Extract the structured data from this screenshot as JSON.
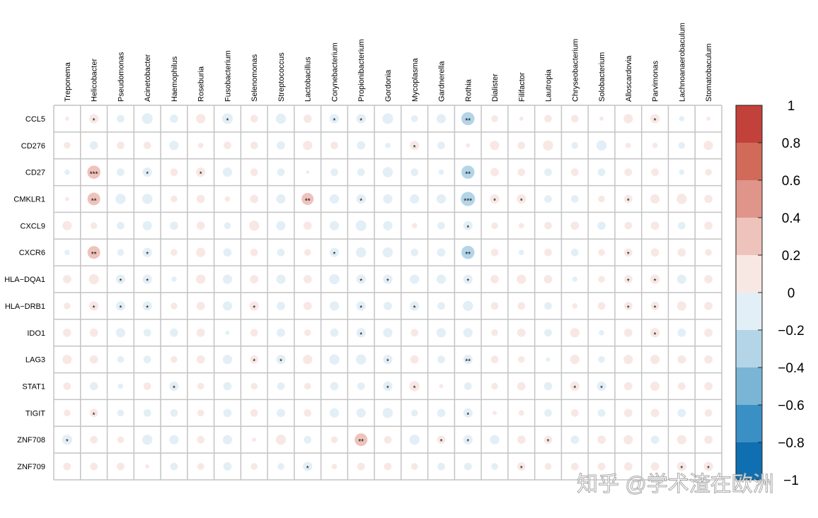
{
  "chart_data": {
    "type": "corrplot",
    "columns": [
      "Treponema",
      "Helicobacter",
      "Pseudomonas",
      "Acinetobacter",
      "Haemophilus",
      "Roseburia",
      "Fusobacterium",
      "Selenomonas",
      "Streptococcus",
      "Lactobacillus",
      "Corynebacterium",
      "Propionibacterium",
      "Gordonia",
      "Mycoplasma",
      "Gardnerella",
      "Rothia",
      "Dialister",
      "Filifactor",
      "Lautropia",
      "Chryseobacterium",
      "Solobacterium",
      "Alloscardovia",
      "Parvimonas",
      "Lachnoanaerobaculum",
      "Stomatobaculum"
    ],
    "rows": [
      "CCL5",
      "CD276",
      "CD27",
      "CMKLR1",
      "CXCL9",
      "CXCR6",
      "HLA−DQA1",
      "HLA−DRB1",
      "IDO1",
      "LAG3",
      "STAT1",
      "TIGIT",
      "ZNF708",
      "ZNF709"
    ],
    "values": [
      [
        0.03,
        0.15,
        -0.1,
        -0.2,
        -0.12,
        0.15,
        -0.2,
        0.1,
        -0.18,
        0.12,
        -0.15,
        -0.15,
        -0.2,
        -0.08,
        -0.15,
        -0.3,
        0.08,
        0.03,
        0.1,
        0.1,
        0.03,
        0.15,
        0.15,
        -0.05,
        0.03
      ],
      [
        0.08,
        -0.12,
        0.1,
        0.1,
        -0.15,
        0.05,
        0.1,
        0.1,
        -0.12,
        0.15,
        0.1,
        -0.12,
        -0.05,
        0.15,
        -0.1,
        0.03,
        0.15,
        0.1,
        0.18,
        -0.08,
        -0.18,
        0.05,
        0.05,
        -0.08,
        0.15
      ],
      [
        -0.05,
        0.3,
        -0.1,
        -0.15,
        0.1,
        0.15,
        -0.15,
        0.1,
        -0.1,
        0.02,
        -0.1,
        -0.1,
        -0.18,
        -0.1,
        -0.05,
        -0.3,
        0.12,
        0.1,
        -0.1,
        0.1,
        -0.1,
        0.1,
        0.1,
        -0.05,
        0.08
      ],
      [
        0.03,
        0.28,
        -0.18,
        -0.18,
        0.08,
        0.12,
        0.05,
        0.12,
        -0.15,
        0.25,
        -0.15,
        -0.15,
        -0.15,
        -0.15,
        -0.15,
        -0.35,
        0.15,
        0.15,
        -0.1,
        -0.1,
        0.08,
        0.12,
        0.15,
        0.18,
        0.12
      ],
      [
        0.15,
        0.08,
        -0.1,
        -0.15,
        -0.12,
        0.12,
        -0.08,
        0.18,
        -0.15,
        0.12,
        -0.15,
        -0.2,
        -0.15,
        0.05,
        -0.1,
        -0.15,
        0.08,
        0.05,
        0.1,
        0.12,
        -0.12,
        0.1,
        0.12,
        -0.1,
        0.12
      ],
      [
        -0.05,
        0.28,
        -0.08,
        -0.15,
        0.08,
        0.15,
        -0.12,
        0.1,
        -0.1,
        0.08,
        -0.15,
        -0.18,
        -0.18,
        -0.1,
        -0.12,
        -0.3,
        0.1,
        -0.05,
        0.1,
        -0.1,
        0.08,
        0.12,
        0.12,
        0.12,
        0.08
      ],
      [
        0.12,
        0.18,
        -0.15,
        -0.15,
        -0.05,
        0.15,
        -0.15,
        0.12,
        -0.15,
        0.12,
        -0.18,
        -0.15,
        -0.15,
        -0.15,
        -0.15,
        -0.15,
        0.12,
        0.15,
        0.12,
        -0.05,
        0.08,
        0.12,
        0.15,
        -0.15,
        0.12
      ],
      [
        0.08,
        0.15,
        -0.15,
        -0.15,
        0.08,
        0.12,
        -0.15,
        0.15,
        -0.12,
        0.12,
        -0.15,
        -0.15,
        -0.12,
        -0.15,
        -0.1,
        -0.18,
        0.1,
        0.1,
        -0.1,
        0.05,
        0.1,
        0.12,
        0.12,
        0.15,
        0.12
      ],
      [
        0.12,
        0.12,
        -0.15,
        -0.1,
        -0.12,
        0.12,
        -0.03,
        0.1,
        -0.12,
        0.08,
        -0.12,
        -0.15,
        -0.15,
        0.1,
        -0.15,
        -0.15,
        0.08,
        0.12,
        -0.1,
        0.15,
        -0.05,
        0.12,
        0.15,
        -0.12,
        0.12
      ],
      [
        0.15,
        0.12,
        -0.08,
        -0.1,
        0.08,
        0.12,
        -0.15,
        0.12,
        -0.15,
        0.15,
        -0.18,
        -0.18,
        -0.15,
        0.12,
        -0.1,
        -0.15,
        0.1,
        0.08,
        -0.03,
        0.15,
        -0.08,
        0.15,
        0.15,
        0.12,
        0.12
      ],
      [
        0.1,
        -0.12,
        -0.05,
        0.1,
        -0.15,
        0.08,
        -0.12,
        0.08,
        -0.1,
        0.08,
        -0.12,
        -0.1,
        -0.15,
        0.18,
        0.03,
        -0.1,
        0.08,
        0.12,
        -0.12,
        0.15,
        -0.15,
        0.12,
        0.15,
        0.1,
        0.12
      ],
      [
        0.08,
        0.12,
        -0.08,
        -0.1,
        -0.1,
        0.08,
        -0.12,
        0.1,
        -0.12,
        0.1,
        -0.15,
        -0.15,
        -0.18,
        -0.08,
        -0.12,
        -0.15,
        0.03,
        0.05,
        -0.1,
        0.1,
        -0.1,
        0.12,
        0.12,
        -0.12,
        0.1
      ],
      [
        -0.18,
        0.1,
        0.08,
        -0.18,
        -0.15,
        0.1,
        -0.15,
        0.03,
        0.18,
        -0.1,
        0.08,
        0.28,
        0.1,
        -0.18,
        0.12,
        -0.15,
        -0.15,
        0.12,
        0.12,
        -0.12,
        0.12,
        0.15,
        -0.12,
        0.15,
        0.12
      ],
      [
        0.1,
        0.1,
        0.1,
        0.03,
        -0.1,
        0.08,
        -0.12,
        0.08,
        -0.08,
        -0.15,
        0.05,
        0.1,
        0.1,
        0.08,
        -0.1,
        -0.1,
        -0.08,
        0.12,
        0.08,
        0.1,
        0.1,
        0.12,
        0.12,
        0.15,
        0.15
      ]
    ],
    "significance": [
      [
        null,
        "*",
        null,
        null,
        null,
        null,
        "*",
        null,
        null,
        null,
        "*",
        "*",
        null,
        null,
        null,
        "**",
        null,
        null,
        null,
        null,
        null,
        null,
        "*",
        null,
        null
      ],
      [
        null,
        null,
        null,
        null,
        null,
        null,
        null,
        null,
        null,
        null,
        null,
        null,
        null,
        "*",
        null,
        null,
        null,
        null,
        null,
        null,
        null,
        null,
        null,
        null,
        null
      ],
      [
        null,
        "***",
        null,
        "*",
        null,
        "*",
        null,
        null,
        null,
        null,
        null,
        null,
        null,
        null,
        null,
        "**",
        null,
        null,
        null,
        null,
        null,
        null,
        null,
        null,
        null
      ],
      [
        null,
        "**",
        null,
        null,
        null,
        null,
        null,
        null,
        null,
        "**",
        null,
        "*",
        null,
        null,
        null,
        "***",
        "*",
        "*",
        null,
        null,
        null,
        "*",
        null,
        null,
        null
      ],
      [
        null,
        null,
        null,
        null,
        null,
        null,
        null,
        null,
        null,
        null,
        null,
        null,
        null,
        null,
        null,
        "*",
        null,
        null,
        null,
        null,
        null,
        null,
        null,
        null,
        null
      ],
      [
        null,
        "**",
        null,
        "*",
        null,
        null,
        null,
        null,
        null,
        null,
        "*",
        null,
        null,
        null,
        null,
        "**",
        null,
        null,
        null,
        null,
        null,
        "*",
        null,
        null,
        null
      ],
      [
        null,
        null,
        "*",
        "*",
        null,
        null,
        null,
        null,
        null,
        null,
        null,
        "*",
        "*",
        null,
        null,
        "*",
        null,
        null,
        null,
        null,
        null,
        "*",
        "*",
        null,
        null
      ],
      [
        null,
        "*",
        "*",
        "*",
        null,
        null,
        null,
        "*",
        null,
        null,
        null,
        "*",
        null,
        "*",
        null,
        null,
        null,
        null,
        null,
        null,
        null,
        "*",
        "*",
        null,
        null
      ],
      [
        null,
        null,
        null,
        null,
        null,
        null,
        null,
        null,
        null,
        null,
        null,
        "*",
        null,
        null,
        null,
        null,
        null,
        null,
        null,
        null,
        null,
        null,
        "*",
        null,
        null
      ],
      [
        null,
        null,
        null,
        null,
        null,
        null,
        null,
        "*",
        "*",
        null,
        null,
        null,
        "*",
        null,
        null,
        "**",
        null,
        null,
        null,
        null,
        null,
        null,
        null,
        null,
        null
      ],
      [
        null,
        null,
        null,
        null,
        "*",
        null,
        null,
        null,
        null,
        null,
        null,
        null,
        "*",
        "*",
        null,
        null,
        null,
        null,
        null,
        "*",
        "*",
        null,
        null,
        null,
        null
      ],
      [
        null,
        "*",
        null,
        null,
        null,
        null,
        null,
        null,
        null,
        null,
        null,
        null,
        null,
        null,
        null,
        "*",
        null,
        null,
        null,
        null,
        null,
        null,
        null,
        null,
        null
      ],
      [
        "*",
        null,
        null,
        null,
        null,
        null,
        null,
        null,
        null,
        null,
        null,
        "**",
        null,
        null,
        "*",
        "*",
        null,
        null,
        "*",
        null,
        null,
        null,
        null,
        null,
        null
      ],
      [
        null,
        null,
        null,
        null,
        null,
        null,
        null,
        null,
        null,
        "*",
        null,
        null,
        null,
        null,
        null,
        null,
        null,
        "*",
        null,
        null,
        null,
        null,
        null,
        "*",
        "*"
      ]
    ],
    "clim": [
      -1,
      1
    ],
    "colors": [
      "#0f6fb0",
      "#3a8fc5",
      "#7ab5d6",
      "#b4d5e8",
      "#e3eff7",
      "#f8e8e4",
      "#eec3bb",
      "#e0958a",
      "#d26a5a",
      "#c2413a"
    ],
    "colorbar_ticks": [
      1,
      0.8,
      0.6,
      0.4,
      0.2,
      0,
      {
        "value": -0.2,
        "label": "−0.2"
      },
      {
        "value": -0.4,
        "label": "−0.4"
      },
      {
        "value": -0.6,
        "label": "−0.6"
      },
      {
        "value": -0.8,
        "label": "−0.8"
      },
      {
        "value": -1,
        "label": "−1"
      }
    ],
    "watermark": "知乎 @学术渣在欧洲"
  }
}
